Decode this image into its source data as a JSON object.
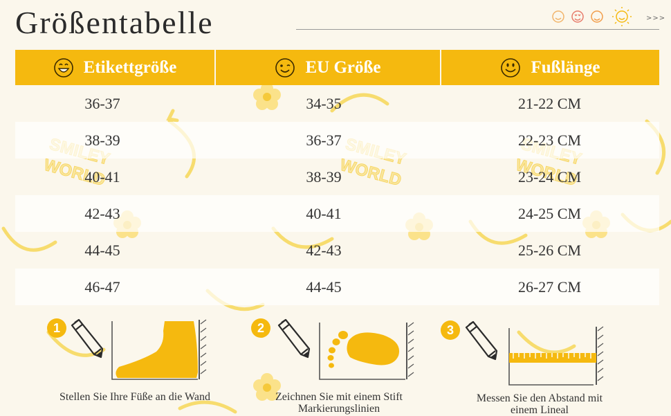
{
  "title": "Größentabelle",
  "header_arrows": ">>>",
  "colors": {
    "accent": "#f5b90f",
    "background": "#fbf7ec"
  },
  "watermark": [
    "SMILEY",
    "WORLD"
  ],
  "table": {
    "columns": [
      {
        "label": "Etikettgröße",
        "icon": "smiley-grin-icon"
      },
      {
        "label": "EU Größe",
        "icon": "smiley-wink-icon"
      },
      {
        "label": "Fußlänge",
        "icon": "smiley-smile-icon"
      }
    ],
    "rows": [
      [
        "36-37",
        "34-35",
        "21-22 CM"
      ],
      [
        "38-39",
        "36-37",
        "22-23 CM"
      ],
      [
        "40-41",
        "38-39",
        "23-24 CM"
      ],
      [
        "42-43",
        "40-41",
        "24-25 CM"
      ],
      [
        "44-45",
        "42-43",
        "25-26 CM"
      ],
      [
        "46-47",
        "44-45",
        "26-27 CM"
      ]
    ]
  },
  "steps": [
    {
      "number": "1",
      "icon": "pencil-icon",
      "illustration": "foot-against-wall-icon",
      "caption_lines": [
        "Stellen Sie Ihre Füße an die Wand"
      ]
    },
    {
      "number": "2",
      "icon": "pencil-icon",
      "illustration": "footprint-icon",
      "caption_lines": [
        "Zeichnen Sie mit einem Stift",
        "Markierungslinien"
      ]
    },
    {
      "number": "3",
      "icon": "pencil-icon",
      "illustration": "ruler-icon",
      "caption_lines": [
        "Messen Sie den Abstand mit",
        "einem Lineal"
      ]
    }
  ]
}
